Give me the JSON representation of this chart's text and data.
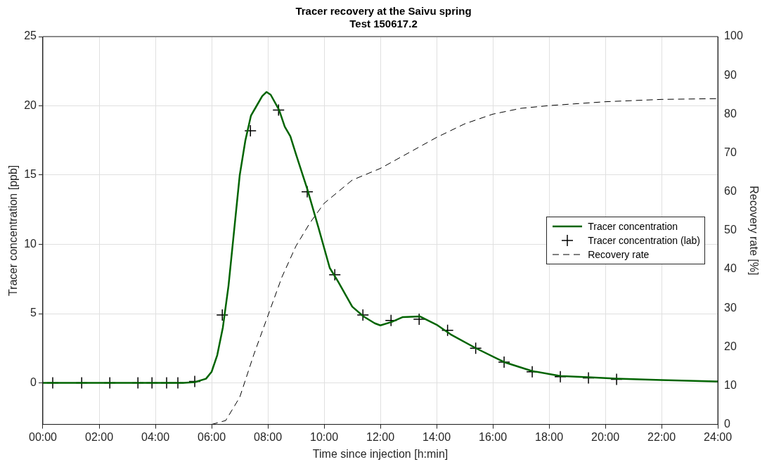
{
  "chart_data": {
    "type": "line",
    "title": "Tracer recovery at the Saivu spring",
    "subtitle": "Test 150617.2",
    "xlabel": "Time since injection [h:min]",
    "ylabel": "Tracer concentration [ppb]",
    "y2label": "Recovery rate [%]",
    "xlim": [
      0,
      24
    ],
    "xticks": [
      {
        "value": 0,
        "label": "00:00"
      },
      {
        "value": 2,
        "label": "02:00"
      },
      {
        "value": 4,
        "label": "04:00"
      },
      {
        "value": 6,
        "label": "06:00"
      },
      {
        "value": 8,
        "label": "08:00"
      },
      {
        "value": 10,
        "label": "10:00"
      },
      {
        "value": 12,
        "label": "12:00"
      },
      {
        "value": 14,
        "label": "14:00"
      },
      {
        "value": 16,
        "label": "16:00"
      },
      {
        "value": 18,
        "label": "18:00"
      },
      {
        "value": 20,
        "label": "20:00"
      },
      {
        "value": 22,
        "label": "22:00"
      },
      {
        "value": 24,
        "label": "24:00"
      }
    ],
    "ylim": [
      -3,
      25
    ],
    "yticks": [
      0,
      5,
      10,
      15,
      20,
      25
    ],
    "y2lim": [
      0,
      100
    ],
    "y2ticks": [
      0,
      10,
      20,
      30,
      40,
      50,
      60,
      70,
      80,
      90,
      100
    ],
    "grid": true,
    "legend": "right",
    "series": [
      {
        "name": "Tracer concentration",
        "color": "#006400",
        "marker": "none",
        "line_style": "solid",
        "x": [
          0,
          5,
          5.4,
          5.8,
          6.0,
          6.2,
          6.4,
          6.6,
          6.8,
          7.0,
          7.2,
          7.4,
          7.6,
          7.8,
          7.95,
          8.1,
          8.4,
          8.6,
          8.8,
          9.0,
          9.4,
          9.8,
          10.2,
          10.5,
          11.0,
          11.4,
          11.8,
          12.0,
          12.4,
          12.8,
          13.4,
          14.0,
          14.5,
          15.4,
          16.4,
          17.4,
          18.4,
          19.4,
          20.4,
          22,
          24
        ],
        "values": [
          0,
          0,
          0.05,
          0.3,
          0.8,
          2,
          4,
          7,
          11,
          15,
          17.5,
          19.3,
          20,
          20.7,
          21,
          20.8,
          19.7,
          18.5,
          17.8,
          16.5,
          14,
          11.2,
          8.3,
          7.3,
          5.5,
          4.8,
          4.3,
          4.15,
          4.4,
          4.75,
          4.8,
          4.2,
          3.5,
          2.5,
          1.5,
          0.85,
          0.5,
          0.4,
          0.3,
          0.2,
          0.1
        ]
      },
      {
        "name": "Tracer concentration (lab)",
        "type": "scatter",
        "color": "#000000",
        "marker": "cross",
        "x": [
          0.35,
          1.38,
          2.38,
          3.38,
          3.88,
          4.4,
          4.8,
          5.4,
          6.38,
          7.38,
          8.38,
          9.4,
          10.38,
          11.38,
          12.38,
          13.38,
          14.39,
          15.39,
          16.4,
          17.4,
          18.4,
          19.4,
          20.4
        ],
        "values": [
          0,
          0,
          0,
          0,
          0,
          0,
          0,
          0.1,
          4.9,
          18.2,
          19.7,
          13.8,
          7.8,
          4.9,
          4.5,
          4.6,
          3.8,
          2.5,
          1.5,
          0.8,
          0.45,
          0.35,
          0.25
        ]
      },
      {
        "name": "Recovery rate",
        "axis": "y2",
        "color": "#000000",
        "marker": "none",
        "line_style": "dashed",
        "x": [
          0,
          6,
          6.5,
          7.0,
          7.5,
          8,
          8.5,
          9,
          9.5,
          10,
          10.5,
          11,
          12,
          12.5,
          13,
          14,
          15,
          16,
          17,
          18,
          20,
          22,
          24
        ],
        "values": [
          0,
          0,
          1,
          7,
          18,
          28,
          38,
          46,
          52,
          57,
          60,
          63,
          66,
          68,
          70,
          74,
          77.5,
          80,
          81.5,
          82.2,
          83.2,
          83.8,
          84
        ]
      }
    ]
  }
}
